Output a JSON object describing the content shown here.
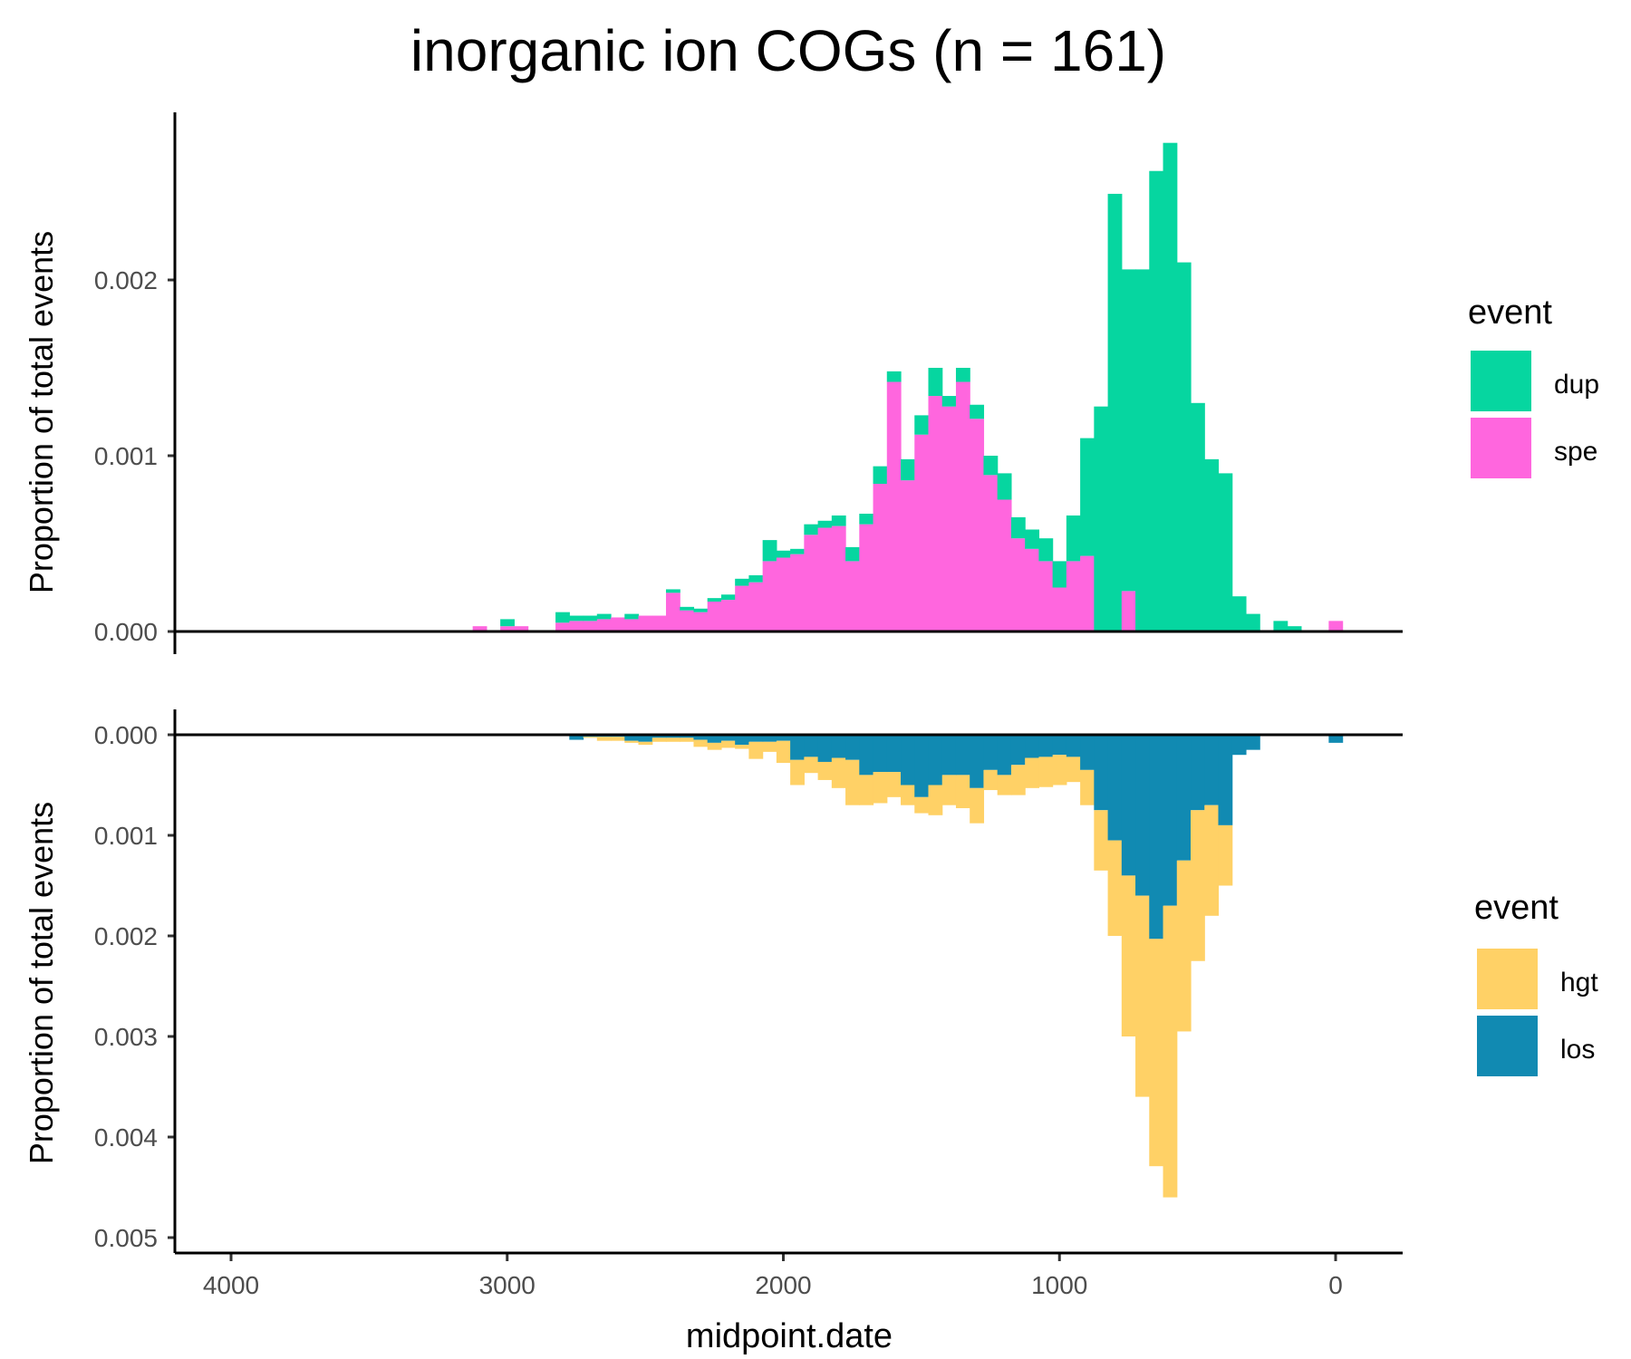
{
  "chart_data": [
    {
      "type": "bar",
      "stacked": true,
      "title": "inorganic ion COGs (n = 161)",
      "xlabel": "midpoint.date",
      "ylabel": "Proportion of total events",
      "x_reversed": true,
      "xlim": [
        4200,
        -200
      ],
      "ylim": [
        0,
        0.00295
      ],
      "yticks": [
        0,
        0.001,
        0.002
      ],
      "ytick_labels": [
        "0.000",
        "0.001",
        "0.002"
      ],
      "bin_width": 50,
      "legend": {
        "title": "event",
        "position": "right"
      },
      "x": [
        3100,
        3000,
        2950,
        2850,
        2800,
        2750,
        2700,
        2650,
        2600,
        2550,
        2500,
        2450,
        2400,
        2350,
        2300,
        2250,
        2200,
        2150,
        2100,
        2050,
        2000,
        1950,
        1900,
        1850,
        1800,
        1750,
        1700,
        1650,
        1600,
        1550,
        1500,
        1450,
        1400,
        1350,
        1300,
        1250,
        1200,
        1150,
        1100,
        1050,
        1000,
        950,
        900,
        850,
        800,
        750,
        700,
        650,
        600,
        550,
        500,
        450,
        400,
        350,
        300,
        200,
        150,
        0
      ],
      "series": [
        {
          "name": "spe",
          "color": "#ff66de",
          "values": [
            3e-05,
            3e-05,
            3e-05,
            0,
            5e-05,
            6e-05,
            6e-05,
            7e-05,
            8e-05,
            7e-05,
            9e-05,
            9e-05,
            0.00022,
            0.00012,
            0.00011,
            0.00017,
            0.00018,
            0.00026,
            0.00028,
            0.0004,
            0.00042,
            0.00044,
            0.00055,
            0.00059,
            0.0006,
            0.0004,
            0.00061,
            0.00084,
            0.00142,
            0.00086,
            0.00112,
            0.00134,
            0.00128,
            0.00142,
            0.00121,
            0.00089,
            0.00075,
            0.00053,
            0.00047,
            0.0004,
            0.00025,
            0.0004,
            0.00043,
            0,
            0,
            0.00023,
            0,
            0,
            0,
            0,
            0,
            0,
            0,
            0,
            0,
            0,
            0,
            6e-05
          ]
        },
        {
          "name": "dup",
          "color": "#06d6a0",
          "values": [
            0,
            4e-05,
            0,
            0,
            6e-05,
            3e-05,
            3e-05,
            3e-05,
            0,
            3e-05,
            0,
            0,
            2e-05,
            2e-05,
            2e-05,
            2e-05,
            3e-05,
            4e-05,
            4e-05,
            0.00012,
            4e-05,
            3e-05,
            6e-05,
            4e-05,
            6e-05,
            8e-05,
            6e-05,
            0.0001,
            6e-05,
            0.00012,
            0.00011,
            0.00016,
            6e-05,
            8e-05,
            8e-05,
            0.00011,
            0.00015,
            0.00012,
            0.00011,
            0.00013,
            0.00015,
            0.00026,
            0.00067,
            0.00128,
            0.00249,
            0.00183,
            0.00206,
            0.00262,
            0.00278,
            0.0021,
            0.0013,
            0.00098,
            0.0009,
            0.0002,
            0.0001,
            6e-05,
            3e-05,
            0
          ]
        }
      ]
    },
    {
      "type": "bar",
      "stacked": true,
      "negative": true,
      "xlabel": "midpoint.date",
      "ylabel": "Proportion of total events",
      "x_reversed": true,
      "xlim": [
        4200,
        -200
      ],
      "ylim": [
        0,
        0.00505
      ],
      "yticks": [
        0,
        0.001,
        0.002,
        0.003,
        0.004,
        0.005
      ],
      "ytick_labels": [
        "0.000",
        "0.001",
        "0.002",
        "0.003",
        "0.004",
        "0.005"
      ],
      "xticks": [
        4000,
        3000,
        2000,
        1000,
        0
      ],
      "xtick_labels": [
        "4000",
        "3000",
        "2000",
        "1000",
        "0"
      ],
      "bin_width": 50,
      "legend": {
        "title": "event",
        "position": "right"
      },
      "x": [
        2750,
        2700,
        2650,
        2600,
        2550,
        2500,
        2450,
        2400,
        2350,
        2300,
        2250,
        2200,
        2150,
        2100,
        2050,
        2000,
        1950,
        1900,
        1850,
        1800,
        1750,
        1700,
        1650,
        1600,
        1550,
        1500,
        1450,
        1400,
        1350,
        1300,
        1250,
        1200,
        1150,
        1100,
        1050,
        1000,
        950,
        900,
        850,
        800,
        750,
        700,
        650,
        600,
        550,
        500,
        450,
        400,
        350,
        300,
        0
      ],
      "series": [
        {
          "name": "los",
          "color": "#118ab2",
          "values": [
            5e-05,
            2e-05,
            2e-05,
            2e-05,
            6e-05,
            7e-05,
            3e-05,
            3e-05,
            3e-05,
            5e-05,
            8e-05,
            6e-05,
            0.0001,
            7e-05,
            7e-05,
            6e-05,
            0.00025,
            0.00022,
            0.00027,
            0.00023,
            0.00025,
            0.0004,
            0.00037,
            0.00037,
            0.0005,
            0.00062,
            0.0005,
            0.0004,
            0.0004,
            0.00053,
            0.00035,
            0.0004,
            0.0003,
            0.00023,
            0.00022,
            0.0002,
            0.00022,
            0.00035,
            0.00075,
            0.00105,
            0.0014,
            0.0016,
            0.00203,
            0.0017,
            0.00125,
            0.00075,
            0.0007,
            0.0009,
            0.0002,
            0.00015,
            8e-05
          ]
        },
        {
          "name": "hgt",
          "color": "#ffd166",
          "values": [
            0,
            1e-05,
            4e-05,
            4e-05,
            2e-05,
            3e-05,
            4e-05,
            4e-05,
            4e-05,
            7e-05,
            7e-05,
            7e-05,
            4e-05,
            0.00017,
            0.0001,
            0.00022,
            0.00025,
            0.00016,
            0.00018,
            0.0003,
            0.00045,
            0.0003,
            0.00031,
            0.00025,
            0.0002,
            0.00016,
            0.0003,
            0.0003,
            0.00033,
            0.00035,
            0.0002,
            0.0002,
            0.0003,
            0.0003,
            0.0003,
            0.0003,
            0.00025,
            0.00035,
            0.0006,
            0.00095,
            0.0016,
            0.002,
            0.00226,
            0.0029,
            0.0017,
            0.0015,
            0.0011,
            0.0006,
            0.0,
            0.0,
            0.0
          ]
        }
      ]
    }
  ]
}
